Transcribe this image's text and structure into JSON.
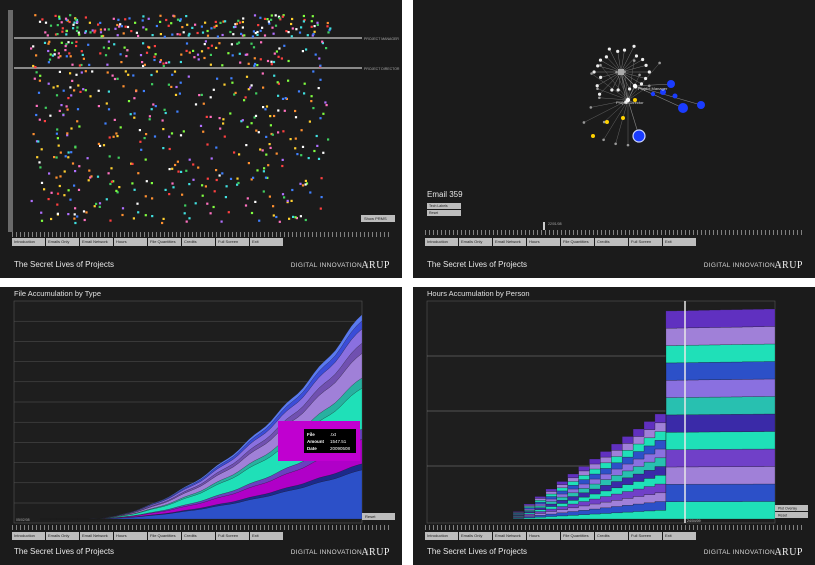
{
  "menu": [
    "Introduction",
    "Emails Only",
    "Email Network",
    "Hours",
    "File Quantities",
    "Credits",
    "Full Screen",
    "Exit"
  ],
  "footer": {
    "title": "The Secret Lives of Projects",
    "brand": "DIGITAL INNOVATION",
    "separator": "|",
    "logo": "ARUP"
  },
  "panel1": {
    "row_labels": [
      "PROJECT MANAGER",
      "PROJECT DIRECTOR"
    ],
    "show_button": "Show PRMS"
  },
  "panel2": {
    "heading": "Email 359",
    "node_labels": [
      "Project Manager",
      "Project Director"
    ],
    "options": [
      "Tech Labels",
      "Reset"
    ],
    "scrub_date": "22/01/08"
  },
  "panel3": {
    "heading": "File Accumulation by Type",
    "start_date": "05/02/08",
    "reset_button": "Reset",
    "tooltip": {
      "rows": [
        {
          "key": "File",
          "value": ".txt"
        },
        {
          "key": "Amount",
          "value": "1547.51"
        },
        {
          "key": "Date",
          "value": "20090508"
        }
      ]
    },
    "colors": {
      "tooltip_bg": "#c000d0",
      "tooltip_inner": "#000000"
    }
  },
  "panel4": {
    "heading": "Hours Accumulation by Person",
    "cursor_date": "24/04/09",
    "options": [
      "Plot Overlay",
      "Reset"
    ]
  },
  "colors": {
    "panel_bg": "#1b1b1b",
    "teal": "#1fe0b8",
    "purple": "#b000c8",
    "blue": "#2c50c8",
    "lavender": "#a080d8"
  }
}
